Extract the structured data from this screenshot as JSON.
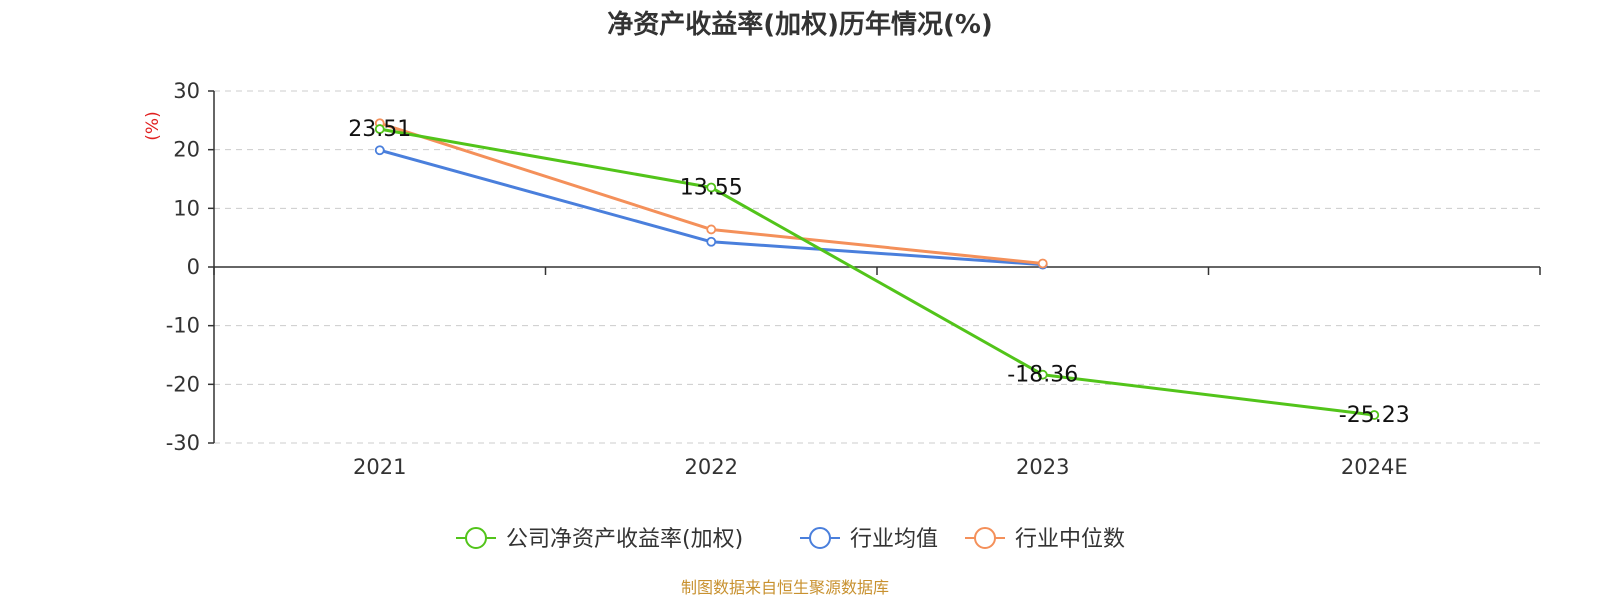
{
  "chart_data": {
    "type": "line",
    "title": "净资产收益率(加权)历年情况(%)",
    "ylabel": "(%)",
    "xlabel": "",
    "categories": [
      "2021",
      "2022",
      "2023",
      "2024E"
    ],
    "ylim": [
      -30,
      30
    ],
    "yticks": [
      30,
      20,
      10,
      0,
      -10,
      -20,
      -30
    ],
    "grid": true,
    "legend_position": "bottom",
    "series": [
      {
        "name": "公司净资产收益率(加权)",
        "color": "#52c41a",
        "values": [
          23.51,
          13.55,
          -18.36,
          -25.23
        ],
        "labels": [
          "23.51",
          "13.55",
          "-18.36",
          "-25.23"
        ]
      },
      {
        "name": "行业均值",
        "color": "#4a7fdc",
        "values": [
          19.9,
          4.3,
          0.4,
          null
        ]
      },
      {
        "name": "行业中位数",
        "color": "#f4905a",
        "values": [
          24.5,
          6.4,
          0.6,
          null
        ]
      }
    ]
  },
  "source": {
    "text": "制图数据来自恒生聚源数据库",
    "color": "#c8912f"
  },
  "colors": {
    "axis": "#333333",
    "grid": "#cccccc",
    "ylabel": "#e02020"
  }
}
